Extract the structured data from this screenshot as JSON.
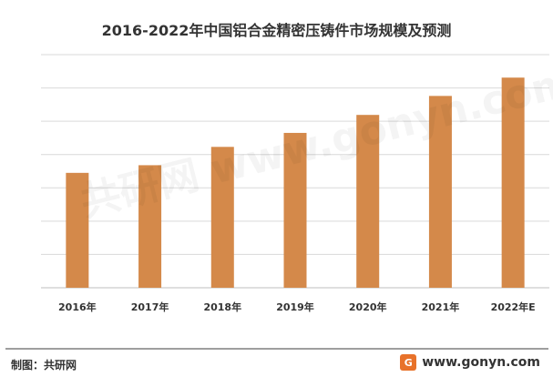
{
  "title": "2016-2022年中国铝合金精密压铸件市场规模及预测",
  "watermark_text": "共研网 www.gonyn.com",
  "footer": {
    "source": "制图：共研网",
    "website": "www.gonyn.com",
    "logo_glyph": "G"
  },
  "colors": {
    "bar": "#D4894A",
    "grid": "#D9D9D9",
    "footer_line": "#9E9E9E"
  },
  "chart_data": {
    "type": "bar",
    "title": "2016-2022年中国铝合金精密压铸件市场规模及预测",
    "categories": [
      "2016年",
      "2017年",
      "2018年",
      "2019年",
      "2020年",
      "2021年",
      "2022年E"
    ],
    "values": [
      34.5,
      36.8,
      42.3,
      46.5,
      51.9,
      57.6,
      63.1
    ],
    "ylim": [
      0,
      70
    ],
    "y_tick_step": 10,
    "y_tick_labels_visible": false,
    "grid": true,
    "xlabel": "",
    "ylabel": ""
  }
}
